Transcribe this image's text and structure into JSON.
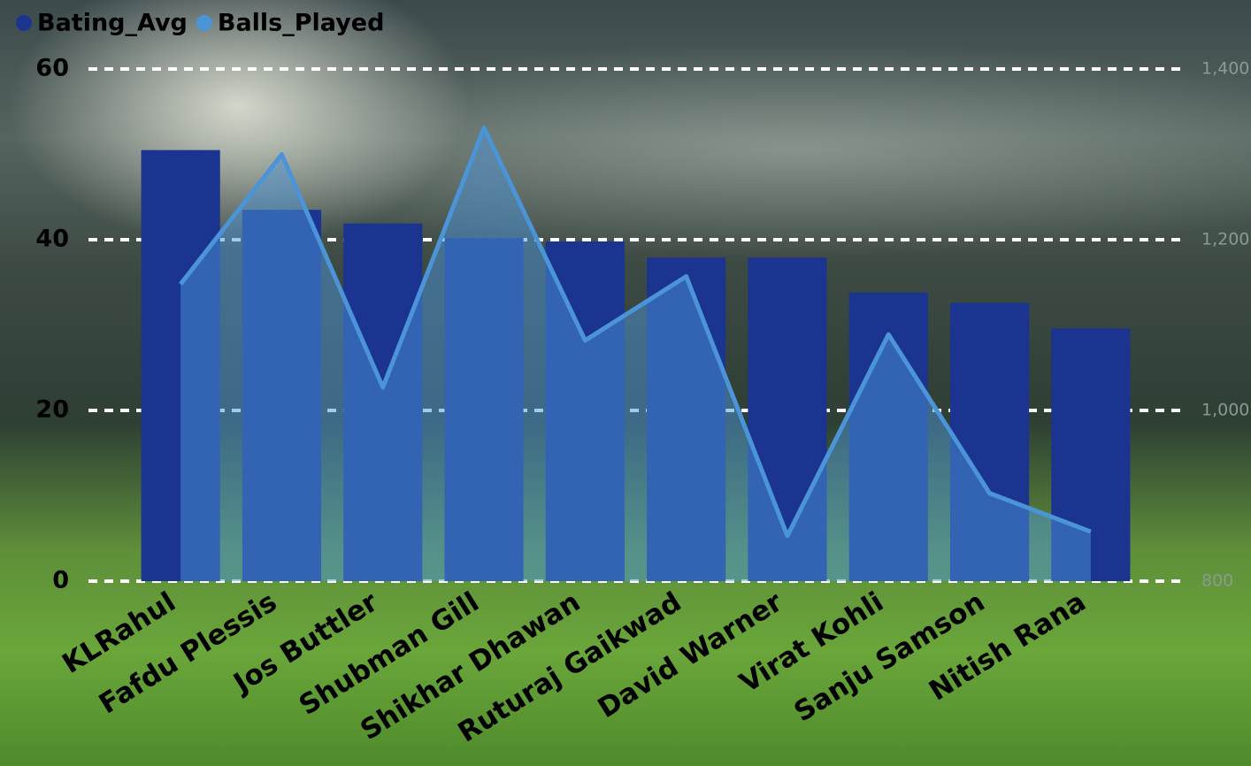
{
  "chart_data": {
    "type": "combo",
    "categories": [
      "KLRahul",
      "Fafdu Plessis",
      "Jos Buttler",
      "Shubman Gill",
      "Shikhar Dhawan",
      "Ruturaj Gaikwad",
      "David Warner",
      "Virat Kohli",
      "Sanju Samson",
      "Nitish Rana"
    ],
    "series": [
      {
        "name": "Bating_Avg",
        "type": "bar",
        "color": "#1b3490",
        "values": [
          50.5,
          43.5,
          41.9,
          40.2,
          39.8,
          37.9,
          37.9,
          33.8,
          32.6,
          29.6
        ]
      },
      {
        "name": "Balls_Played",
        "type": "line",
        "axis": "y2",
        "color": "#4b94d8",
        "values": [
          1148,
          1300,
          1027,
          1331,
          1082,
          1157,
          853,
          1089,
          903,
          858
        ]
      }
    ],
    "ylim": [
      0,
      60
    ],
    "yticks": [
      0,
      20,
      40,
      60
    ],
    "y2lim": [
      800,
      1400
    ],
    "y2ticks": [
      800,
      {
        "value": 1000,
        "label": "1,000"
      },
      {
        "value": 1200,
        "label": "1,200"
      },
      {
        "value": 1400,
        "label": "1,400"
      }
    ],
    "grid": true,
    "legend": "top-left"
  }
}
